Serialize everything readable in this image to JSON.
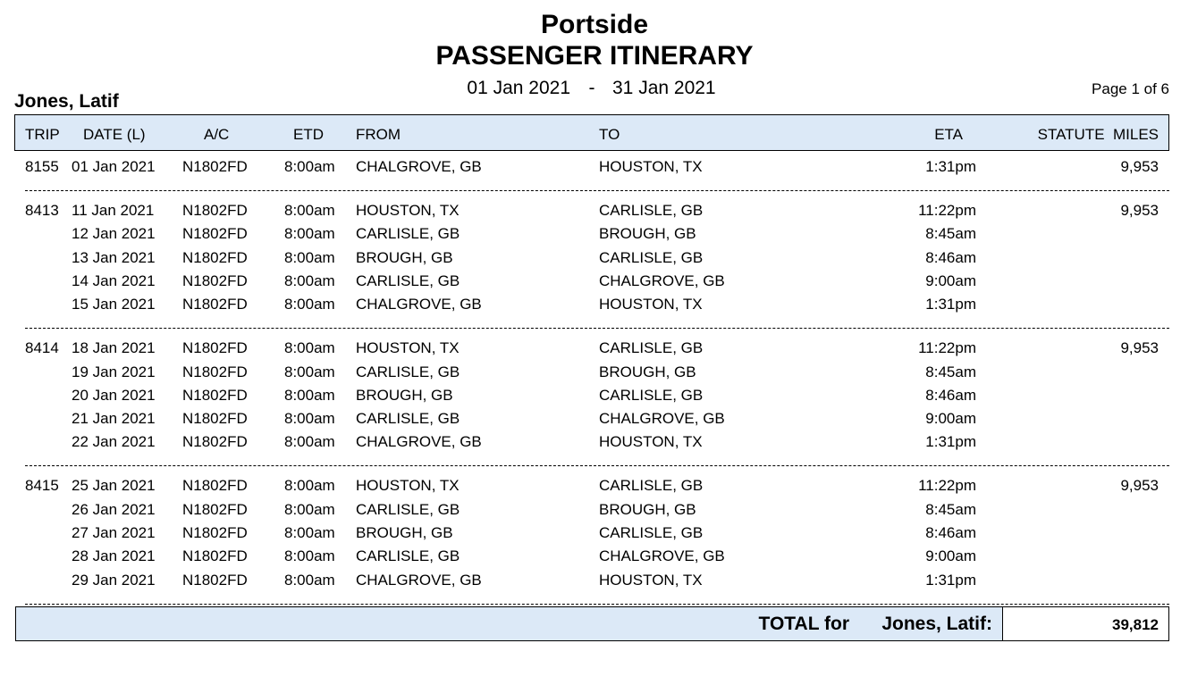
{
  "header": {
    "company": "Portside",
    "title": "PASSENGER ITINERARY",
    "date_from": "01 Jan 2021",
    "date_separator": "-",
    "date_to": "31 Jan 2021",
    "passenger": "Jones, Latif",
    "page": "Page 1 of 6"
  },
  "columns": [
    "TRIP",
    "DATE (L)",
    "A/C",
    "ETD",
    "FROM",
    "TO",
    "ETA",
    "STATUTE  MILES"
  ],
  "trips": [
    {
      "trip": "8155",
      "miles": "9,953",
      "legs": [
        [
          "01 Jan 2021",
          "N1802FD",
          "8:00am",
          "CHALGROVE, GB",
          "HOUSTON, TX",
          "1:31pm"
        ]
      ]
    },
    {
      "trip": "8413",
      "miles": "9,953",
      "legs": [
        [
          "11 Jan 2021",
          "N1802FD",
          "8:00am",
          "HOUSTON, TX",
          "CARLISLE, GB",
          "11:22pm"
        ],
        [
          "12 Jan 2021",
          "N1802FD",
          "8:00am",
          "CARLISLE, GB",
          "BROUGH, GB",
          "8:45am"
        ],
        [
          "13 Jan 2021",
          "N1802FD",
          "8:00am",
          "BROUGH, GB",
          "CARLISLE, GB",
          "8:46am"
        ],
        [
          "14 Jan 2021",
          "N1802FD",
          "8:00am",
          "CARLISLE, GB",
          "CHALGROVE, GB",
          "9:00am"
        ],
        [
          "15 Jan 2021",
          "N1802FD",
          "8:00am",
          "CHALGROVE, GB",
          "HOUSTON, TX",
          "1:31pm"
        ]
      ]
    },
    {
      "trip": "8414",
      "miles": "9,953",
      "legs": [
        [
          "18 Jan 2021",
          "N1802FD",
          "8:00am",
          "HOUSTON, TX",
          "CARLISLE, GB",
          "11:22pm"
        ],
        [
          "19 Jan 2021",
          "N1802FD",
          "8:00am",
          "CARLISLE, GB",
          "BROUGH, GB",
          "8:45am"
        ],
        [
          "20 Jan 2021",
          "N1802FD",
          "8:00am",
          "BROUGH, GB",
          "CARLISLE, GB",
          "8:46am"
        ],
        [
          "21 Jan 2021",
          "N1802FD",
          "8:00am",
          "CARLISLE, GB",
          "CHALGROVE, GB",
          "9:00am"
        ],
        [
          "22 Jan 2021",
          "N1802FD",
          "8:00am",
          "CHALGROVE, GB",
          "HOUSTON, TX",
          "1:31pm"
        ]
      ]
    },
    {
      "trip": "8415",
      "miles": "9,953",
      "legs": [
        [
          "25 Jan 2021",
          "N1802FD",
          "8:00am",
          "HOUSTON, TX",
          "CARLISLE, GB",
          "11:22pm"
        ],
        [
          "26 Jan 2021",
          "N1802FD",
          "8:00am",
          "CARLISLE, GB",
          "BROUGH, GB",
          "8:45am"
        ],
        [
          "27 Jan 2021",
          "N1802FD",
          "8:00am",
          "BROUGH, GB",
          "CARLISLE, GB",
          "8:46am"
        ],
        [
          "28 Jan 2021",
          "N1802FD",
          "8:00am",
          "CARLISLE, GB",
          "CHALGROVE, GB",
          "9:00am"
        ],
        [
          "29 Jan 2021",
          "N1802FD",
          "8:00am",
          "CHALGROVE, GB",
          "HOUSTON, TX",
          "1:31pm"
        ]
      ]
    }
  ],
  "total": {
    "label": "TOTAL for",
    "name": "Jones, Latif:",
    "value": "39,812"
  }
}
